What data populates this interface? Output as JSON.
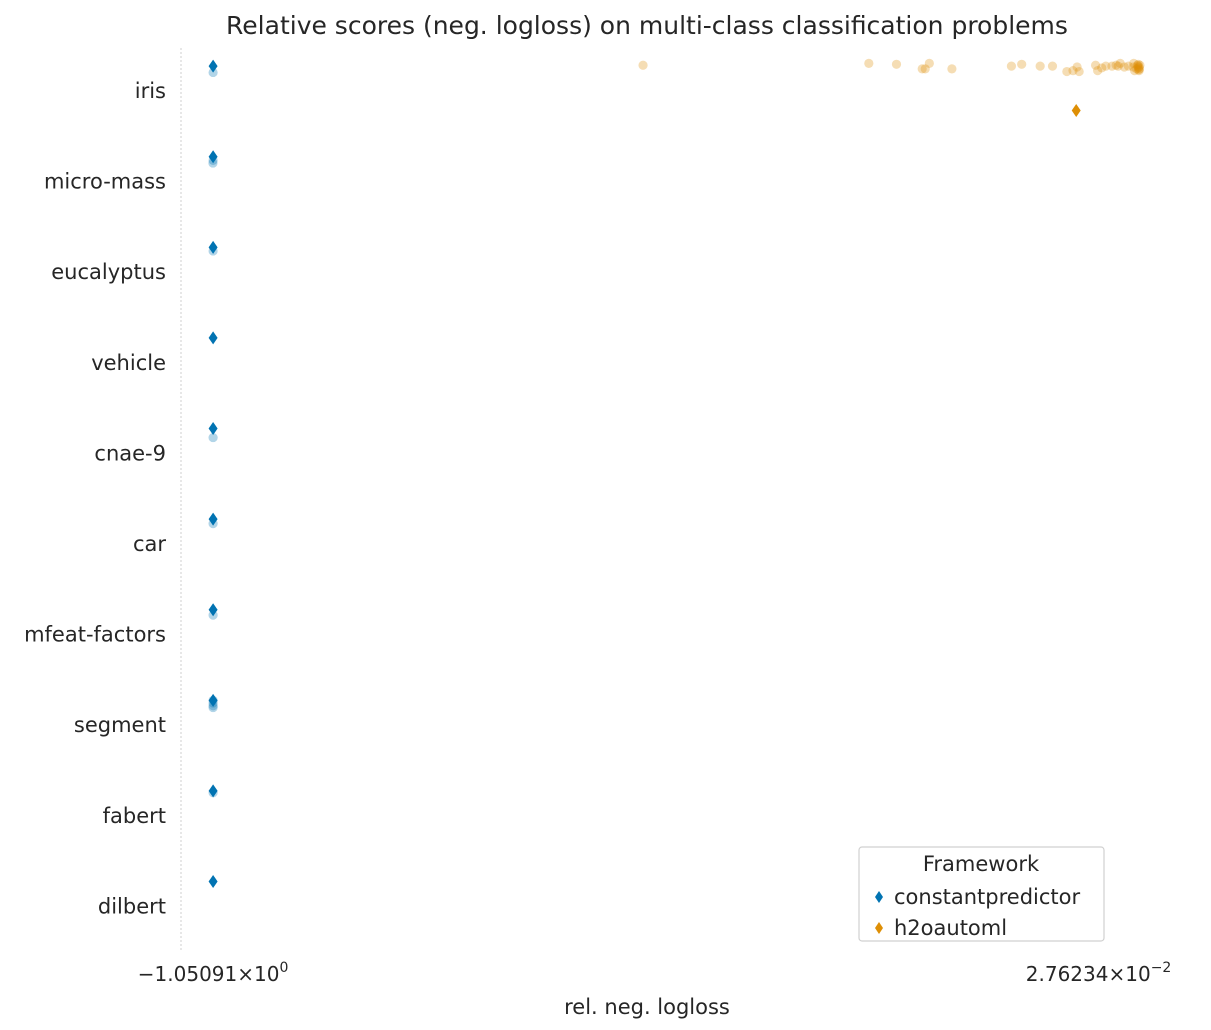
{
  "chart_data": {
    "type": "scatter",
    "title": "Relative scores (neg. logloss) on  multi-class classification problems",
    "xlabel": "rel. neg. logloss",
    "ylabel": "",
    "x_ticks": [
      {
        "value": -1.05091,
        "mantissa": "−1.05091",
        "exponent": "0"
      },
      {
        "value": 0.0276234,
        "mantissa": "2.76234",
        "exponent": "−2"
      }
    ],
    "xlim": [
      -1.09,
      0.044
    ],
    "x_scale": "linear",
    "grid": false,
    "categories": [
      "iris",
      "micro-mass",
      "eucalyptus",
      "vehicle",
      "cnae-9",
      "car",
      "mfeat-factors",
      "segment",
      "fabert",
      "dilbert"
    ],
    "series": [
      {
        "name": "constantpredictor",
        "color": "#0173b2",
        "marker": "diamond",
        "medians": [
          {
            "category": "iris",
            "x": -1.0509
          },
          {
            "category": "micro-mass",
            "x": -1.0509
          },
          {
            "category": "eucalyptus",
            "x": -1.0509
          },
          {
            "category": "vehicle",
            "x": -1.0509
          },
          {
            "category": "cnae-9",
            "x": -1.0509
          },
          {
            "category": "car",
            "x": -1.0509
          },
          {
            "category": "mfeat-factors",
            "x": -1.0509
          },
          {
            "category": "segment",
            "x": -1.0509
          },
          {
            "category": "fabert",
            "x": -1.0509
          },
          {
            "category": "dilbert",
            "x": -1.0509
          }
        ],
        "points": [
          {
            "category": "iris",
            "x": -1.0509,
            "jitter": 0.05
          },
          {
            "category": "micro-mass",
            "x": -1.0511,
            "jitter": 0.05
          },
          {
            "category": "micro-mass",
            "x": -1.0509,
            "jitter": 0.02
          },
          {
            "category": "eucalyptus",
            "x": -1.0509,
            "jitter": 0.02
          },
          {
            "category": "cnae-9",
            "x": -1.0509,
            "jitter": 0.08
          },
          {
            "category": "car",
            "x": -1.0509,
            "jitter": 0.03
          },
          {
            "category": "mfeat-factors",
            "x": -1.0509,
            "jitter": 0.04
          },
          {
            "category": "segment",
            "x": -1.0509,
            "jitter": -0.02
          },
          {
            "category": "segment",
            "x": -1.0509,
            "jitter": 0.01
          },
          {
            "category": "segment",
            "x": -1.0509,
            "jitter": 0.04
          },
          {
            "category": "segment",
            "x": -1.0509,
            "jitter": 0.06
          },
          {
            "category": "fabert",
            "x": -1.0509,
            "jitter": 0.0
          }
        ]
      },
      {
        "name": "h2oautoml",
        "color": "#de8f05",
        "marker": "diamond",
        "medians": [
          {
            "category": "iris",
            "x": 0.0004
          }
        ],
        "points": [
          {
            "category": "iris",
            "x": -0.5272,
            "jitter": -0.03
          },
          {
            "category": "iris",
            "x": -0.2522,
            "jitter": -0.05
          },
          {
            "category": "iris",
            "x": -0.2185,
            "jitter": -0.04
          },
          {
            "category": "iris",
            "x": -0.1835,
            "jitter": 0.01
          },
          {
            "category": "iris",
            "x": -0.1785,
            "jitter": -0.05
          },
          {
            "category": "iris",
            "x": -0.1872,
            "jitter": 0.01
          },
          {
            "category": "iris",
            "x": -0.151,
            "jitter": 0.01
          },
          {
            "category": "iris",
            "x": -0.0785,
            "jitter": -0.02
          },
          {
            "category": "iris",
            "x": -0.066,
            "jitter": -0.04
          },
          {
            "category": "iris",
            "x": -0.0435,
            "jitter": -0.02
          },
          {
            "category": "iris",
            "x": -0.0285,
            "jitter": -0.02
          },
          {
            "category": "iris",
            "x": -0.011,
            "jitter": 0.04
          },
          {
            "category": "iris",
            "x": -0.0035,
            "jitter": 0.03
          },
          {
            "category": "iris",
            "x": 0.0015,
            "jitter": -0.01
          },
          {
            "category": "iris",
            "x": 0.004,
            "jitter": 0.04
          },
          {
            "category": "iris",
            "x": 0.024,
            "jitter": -0.03
          },
          {
            "category": "iris",
            "x": 0.0265,
            "jitter": 0.03
          },
          {
            "category": "iris",
            "x": 0.0315,
            "jitter": 0.0
          },
          {
            "category": "iris",
            "x": 0.0365,
            "jitter": -0.02
          },
          {
            "category": "iris",
            "x": 0.044,
            "jitter": -0.02
          },
          {
            "category": "iris",
            "x": 0.049,
            "jitter": -0.03
          },
          {
            "category": "iris",
            "x": 0.0515,
            "jitter": -0.02
          },
          {
            "category": "iris",
            "x": 0.054,
            "jitter": -0.05
          },
          {
            "category": "iris",
            "x": 0.059,
            "jitter": -0.01
          },
          {
            "category": "iris",
            "x": 0.064,
            "jitter": -0.02
          },
          {
            "category": "iris",
            "x": 0.07,
            "jitter": -0.01
          },
          {
            "category": "iris",
            "x": 0.0705,
            "jitter": -0.05
          },
          {
            "category": "iris",
            "x": 0.0715,
            "jitter": 0.03
          },
          {
            "category": "iris",
            "x": 0.074,
            "jitter": 0.01
          },
          {
            "category": "iris",
            "x": 0.075,
            "jitter": -0.03
          },
          {
            "category": "iris",
            "x": 0.0755,
            "jitter": -0.02
          },
          {
            "category": "iris",
            "x": 0.076,
            "jitter": 0.0
          },
          {
            "category": "iris",
            "x": 0.0765,
            "jitter": 0.02
          },
          {
            "category": "iris",
            "x": 0.077,
            "jitter": -0.01
          },
          {
            "category": "iris",
            "x": 0.0775,
            "jitter": 0.01
          },
          {
            "category": "iris",
            "x": 0.078,
            "jitter": -0.03
          },
          {
            "category": "iris",
            "x": 0.077,
            "jitter": 0.03
          },
          {
            "category": "iris",
            "x": 0.076,
            "jitter": -0.04
          }
        ]
      }
    ],
    "legend": {
      "title": "Framework",
      "position": "lower-right",
      "entries": [
        "constantpredictor",
        "h2oautoml"
      ]
    }
  }
}
